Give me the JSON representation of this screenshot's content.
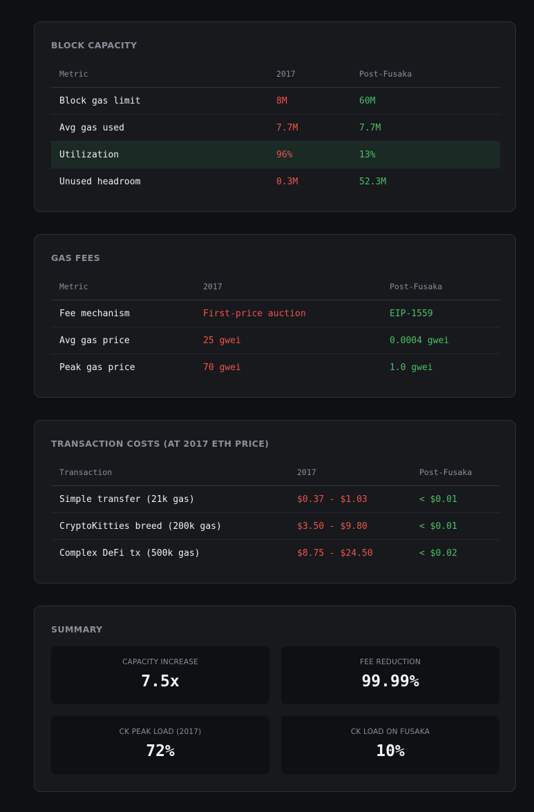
{
  "block_capacity": {
    "title": "BLOCK CAPACITY",
    "headers": [
      "Metric",
      "2017",
      "Post-Fusaka"
    ],
    "rows": [
      {
        "metric": "Block gas limit",
        "old": "8M",
        "new": "60M"
      },
      {
        "metric": "Avg gas used",
        "old": "7.7M",
        "new": "7.7M"
      },
      {
        "metric": "Utilization",
        "old": "96%",
        "new": "13%"
      },
      {
        "metric": "Unused headroom",
        "old": "0.3M",
        "new": "52.3M"
      }
    ]
  },
  "gas_fees": {
    "title": "GAS FEES",
    "headers": [
      "Metric",
      "2017",
      "Post-Fusaka"
    ],
    "rows": [
      {
        "metric": "Fee mechanism",
        "old": "First-price auction",
        "new": "EIP-1559"
      },
      {
        "metric": "Avg gas price",
        "old": "25 gwei",
        "new": "0.0004 gwei"
      },
      {
        "metric": "Peak gas price",
        "old": "70 gwei",
        "new": "1.0 gwei"
      }
    ]
  },
  "transaction_costs": {
    "title": "TRANSACTION COSTS (AT 2017 ETH PRICE)",
    "headers": [
      "Transaction",
      "2017",
      "Post-Fusaka"
    ],
    "rows": [
      {
        "metric": "Simple transfer (21k gas)",
        "old": "$0.37 - $1.03",
        "new": "< $0.01"
      },
      {
        "metric": "CryptoKitties breed (200k gas)",
        "old": "$3.50 - $9.80",
        "new": "< $0.01"
      },
      {
        "metric": "Complex DeFi tx (500k gas)",
        "old": "$8.75 - $24.50",
        "new": "< $0.02"
      }
    ]
  },
  "summary": {
    "title": "SUMMARY",
    "stats": [
      {
        "label": "CAPACITY INCREASE",
        "value": "7.5x"
      },
      {
        "label": "FEE REDUCTION",
        "value": "99.99%"
      },
      {
        "label": "CK PEAK LOAD (2017)",
        "value": "72%"
      },
      {
        "label": "CK LOAD ON FUSAKA",
        "value": "10%"
      }
    ]
  },
  "colors": {
    "background": "#0e1114",
    "card": "#17191d",
    "old_value": "#f0544a",
    "new_value": "#4cc065",
    "highlight_row": "#1b2a25"
  }
}
